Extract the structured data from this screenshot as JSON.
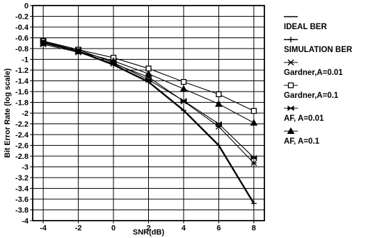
{
  "chart_data": {
    "type": "line",
    "xlabel": "SNR(dB)",
    "ylabel": "Bit Error Rate (log scale)",
    "xlim": [
      -4.6,
      8.6
    ],
    "ylim": [
      -4,
      0
    ],
    "x_ticks": [
      -4,
      -2,
      0,
      2,
      4,
      6,
      8
    ],
    "x_tick_labels": [
      "-4",
      "-2",
      "0",
      "2",
      "4",
      "6",
      "8"
    ],
    "y_ticks": [
      0,
      -0.2,
      -0.4,
      -0.6,
      -0.8,
      -1,
      -1.2,
      -1.4,
      -1.6,
      -1.8,
      -2,
      -2.2,
      -2.4,
      -2.6,
      -2.8,
      -3,
      -3.2,
      -3.4,
      -3.6,
      -3.8,
      -4
    ],
    "y_tick_labels": [
      "0",
      "-0.2",
      "-0.4",
      "-0.6",
      "-0.8",
      "-1",
      "-1.2",
      "-1.4",
      "-1.6",
      "-1.8",
      "-2",
      "-2.2",
      "-2.4",
      "-2.6",
      "-2.8",
      "-3",
      "-3.2",
      "-3.4",
      "-3.6",
      "-3.8",
      "-4"
    ],
    "grid": true,
    "legend_position": "right",
    "x": [
      -4,
      -2,
      0,
      2,
      4,
      6,
      8
    ],
    "series": [
      {
        "name": "IDEAL BER",
        "marker": "none",
        "width": 2.4,
        "values": [
          -0.68,
          -0.85,
          -1.1,
          -1.42,
          -1.95,
          -2.6,
          -3.68
        ]
      },
      {
        "name": "SIMULATION BER",
        "marker": "plus",
        "width": 1.5,
        "values": [
          -0.68,
          -0.85,
          -1.1,
          -1.42,
          -1.95,
          -2.6,
          -3.68
        ]
      },
      {
        "name": "Gardner,A=0.01",
        "marker": "star",
        "width": 1.1,
        "values": [
          -0.72,
          -0.87,
          -1.08,
          -1.33,
          -1.78,
          -2.25,
          -2.93
        ]
      },
      {
        "name": "Gardner,A=0.1",
        "marker": "square",
        "width": 1.1,
        "values": [
          -0.66,
          -0.82,
          -0.97,
          -1.17,
          -1.42,
          -1.65,
          -1.96
        ]
      },
      {
        "name": "AF, A=0.01",
        "marker": "bowtie",
        "width": 1.1,
        "values": [
          -0.66,
          -0.82,
          -1.06,
          -1.38,
          -1.77,
          -2.2,
          -2.83
        ]
      },
      {
        "name": "AF, A=0.1",
        "marker": "triangle",
        "width": 1.1,
        "values": [
          -0.7,
          -0.85,
          -1.03,
          -1.27,
          -1.55,
          -1.83,
          -2.18
        ]
      }
    ]
  }
}
